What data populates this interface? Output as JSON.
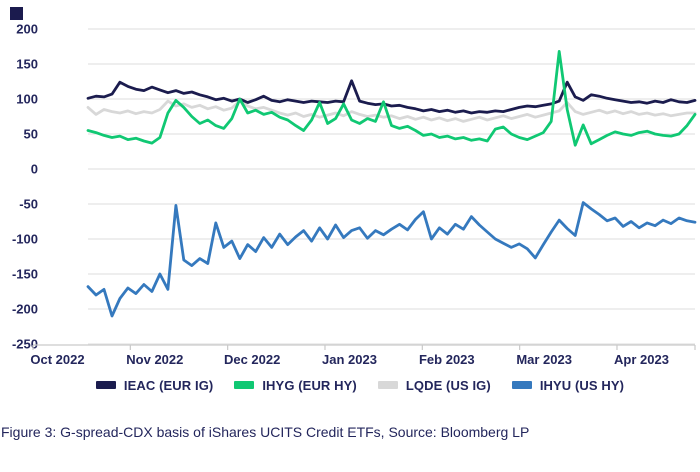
{
  "page": {
    "background": "#ffffff",
    "brand_square_color": "#1b1b4e",
    "text_color": "#23265c",
    "caption": "Figure 3: G-spread-CDX basis of iShares UCITS Credit ETFs, Source: Bloomberg LP"
  },
  "chart_data": {
    "type": "line",
    "title": "",
    "xlabel": "",
    "ylabel": "",
    "grid": true,
    "legend_position": "bottom",
    "x_axis": {
      "tick_labels": [
        "Oct 2022",
        "Nov 2022",
        "Dec 2022",
        "Jan 2023",
        "Feb 2023",
        "Mar 2023",
        "Apr 2023"
      ]
    },
    "y_axis": {
      "tick_labels": [
        "200",
        "150",
        "100",
        "50",
        "0",
        "-50",
        "-100",
        "-150",
        "-200",
        "-250"
      ],
      "range": [
        -250,
        220
      ]
    },
    "gridline_color": "#e4e4e4",
    "axis_color": "#c9c9c9",
    "label_color": "#23265c",
    "series": [
      {
        "name": "IEAC (EUR IG)",
        "color": "#1b1c4e",
        "values": [
          101,
          104,
          103,
          107,
          124,
          118,
          114,
          112,
          117,
          113,
          109,
          112,
          108,
          110,
          106,
          103,
          99,
          101,
          97,
          100,
          95,
          99,
          104,
          98,
          96,
          99,
          97,
          95,
          97,
          96,
          95,
          97,
          96,
          126,
          97,
          94,
          92,
          93,
          90,
          91,
          88,
          86,
          83,
          85,
          82,
          84,
          81,
          83,
          80,
          82,
          81,
          83,
          82,
          85,
          88,
          90,
          89,
          91,
          93,
          97,
          124,
          103,
          98,
          106,
          104,
          101,
          99,
          97,
          95,
          96,
          94,
          97,
          95,
          99,
          96,
          95,
          98
        ]
      },
      {
        "name": "IHYG (EUR HY)",
        "color": "#10c873",
        "values": [
          55,
          52,
          48,
          45,
          47,
          42,
          44,
          40,
          37,
          45,
          80,
          98,
          88,
          75,
          65,
          70,
          62,
          58,
          72,
          100,
          80,
          84,
          78,
          81,
          74,
          70,
          62,
          55,
          70,
          95,
          65,
          72,
          93,
          70,
          65,
          72,
          68,
          96,
          62,
          58,
          61,
          55,
          48,
          50,
          45,
          47,
          43,
          45,
          41,
          43,
          40,
          57,
          60,
          50,
          45,
          42,
          47,
          52,
          68,
          168,
          85,
          34,
          63,
          36,
          42,
          48,
          53,
          50,
          48,
          52,
          54,
          50,
          48,
          47,
          50,
          62,
          78
        ]
      },
      {
        "name": "LQDE (US IG)",
        "color": "#d8d8d8",
        "values": [
          88,
          78,
          85,
          82,
          80,
          83,
          79,
          82,
          80,
          85,
          97,
          90,
          93,
          88,
          91,
          86,
          89,
          84,
          87,
          97,
          90,
          86,
          88,
          84,
          80,
          77,
          80,
          75,
          78,
          74,
          77,
          80,
          76,
          82,
          78,
          75,
          77,
          74,
          76,
          72,
          75,
          71,
          74,
          70,
          73,
          69,
          72,
          68,
          71,
          74,
          70,
          73,
          76,
          72,
          75,
          78,
          74,
          77,
          80,
          83,
          95,
          82,
          78,
          81,
          84,
          80,
          83,
          79,
          82,
          78,
          80,
          77,
          79,
          76,
          78,
          80,
          80
        ]
      },
      {
        "name": "IHYU (US HY)",
        "color": "#3579be",
        "values": [
          -168,
          -180,
          -172,
          -210,
          -185,
          -170,
          -178,
          -165,
          -175,
          -150,
          -172,
          -52,
          -130,
          -138,
          -128,
          -135,
          -77,
          -112,
          -103,
          -128,
          -108,
          -118,
          -98,
          -112,
          -93,
          -108,
          -97,
          -88,
          -103,
          -84,
          -100,
          -80,
          -98,
          -88,
          -84,
          -99,
          -88,
          -94,
          -86,
          -79,
          -87,
          -72,
          -61,
          -100,
          -84,
          -93,
          -79,
          -86,
          -68,
          -80,
          -90,
          -100,
          -106,
          -112,
          -107,
          -114,
          -127,
          -108,
          -90,
          -73,
          -85,
          -95,
          -48,
          -57,
          -65,
          -74,
          -70,
          -82,
          -75,
          -84,
          -77,
          -81,
          -73,
          -78,
          -70,
          -74,
          -76
        ]
      }
    ]
  }
}
